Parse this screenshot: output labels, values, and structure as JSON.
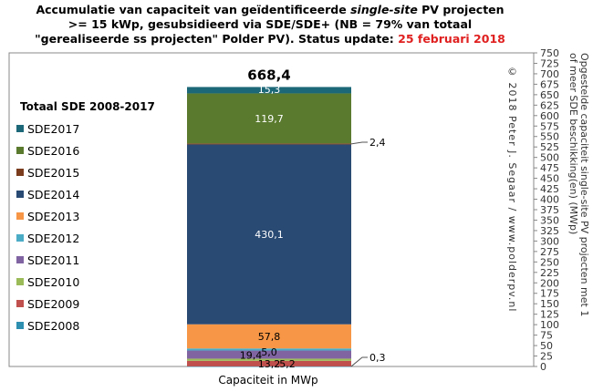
{
  "title": {
    "line1_a": "Accumulatie van capaciteit van geïdentificeerde ",
    "line1_em": "single-site",
    "line1_b": " PV projecten",
    "line2": ">= 15 kWp, gesubsidieerd via SDE/SDE+ (NB = 79% van totaal",
    "line3": "\"gerealiseerde ss projecten\" Polder PV). Status update: ",
    "date": "25 februari 2018"
  },
  "copyright": "© 2018 Peter J. Segaar / www.polderpv.nl",
  "colors": {
    "SDE2008": "#2e8fb0",
    "SDE2009": "#c0504d",
    "SDE2010": "#9bbb59",
    "SDE2011": "#8064a2",
    "SDE2012": "#4bacc6",
    "SDE2013": "#f79646",
    "SDE2014": "#294a73",
    "SDE2015": "#7b3c1e",
    "SDE2016": "#5a7a2e",
    "SDE2017": "#1c6878",
    "date": "#e02020"
  },
  "chart_data": {
    "type": "bar",
    "stacked": true,
    "categories": [
      ""
    ],
    "xlabel": "Capaciteit in MWp",
    "ylabel": "Opgestelde capaciteit single-site PV projecten met 1 of meer SDE beschikking(en) (MWp)",
    "ylim": [
      0,
      750
    ],
    "yticks": [
      0,
      25,
      50,
      75,
      100,
      125,
      150,
      175,
      200,
      225,
      250,
      275,
      300,
      325,
      350,
      375,
      400,
      425,
      450,
      475,
      500,
      525,
      550,
      575,
      600,
      625,
      650,
      675,
      700,
      725,
      750
    ],
    "y_axis_side": "right",
    "grid": false,
    "total_label": "668,4",
    "legend_title": "Totaal SDE 2008-2017",
    "legend_position": "left",
    "legend": [
      "SDE2017",
      "SDE2016",
      "SDE2015",
      "SDE2014",
      "SDE2013",
      "SDE2012",
      "SDE2011",
      "SDE2010",
      "SDE2009",
      "SDE2008"
    ],
    "series": [
      {
        "name": "SDE2008",
        "values": [
          0.3
        ],
        "label": "0,3"
      },
      {
        "name": "SDE2009",
        "values": [
          13.2
        ],
        "label": "13,2"
      },
      {
        "name": "SDE2010",
        "values": [
          5.2
        ],
        "label": "5,2"
      },
      {
        "name": "SDE2011",
        "values": [
          19.4
        ],
        "label": "19,4"
      },
      {
        "name": "SDE2012",
        "values": [
          5.0
        ],
        "label": "5,0"
      },
      {
        "name": "SDE2013",
        "values": [
          57.8
        ],
        "label": "57,8"
      },
      {
        "name": "SDE2014",
        "values": [
          430.1
        ],
        "label": "430,1"
      },
      {
        "name": "SDE2015",
        "values": [
          2.4
        ],
        "label": "2,4"
      },
      {
        "name": "SDE2016",
        "values": [
          119.7
        ],
        "label": "119,7"
      },
      {
        "name": "SDE2017",
        "values": [
          15.3
        ],
        "label": "15,3"
      }
    ]
  }
}
